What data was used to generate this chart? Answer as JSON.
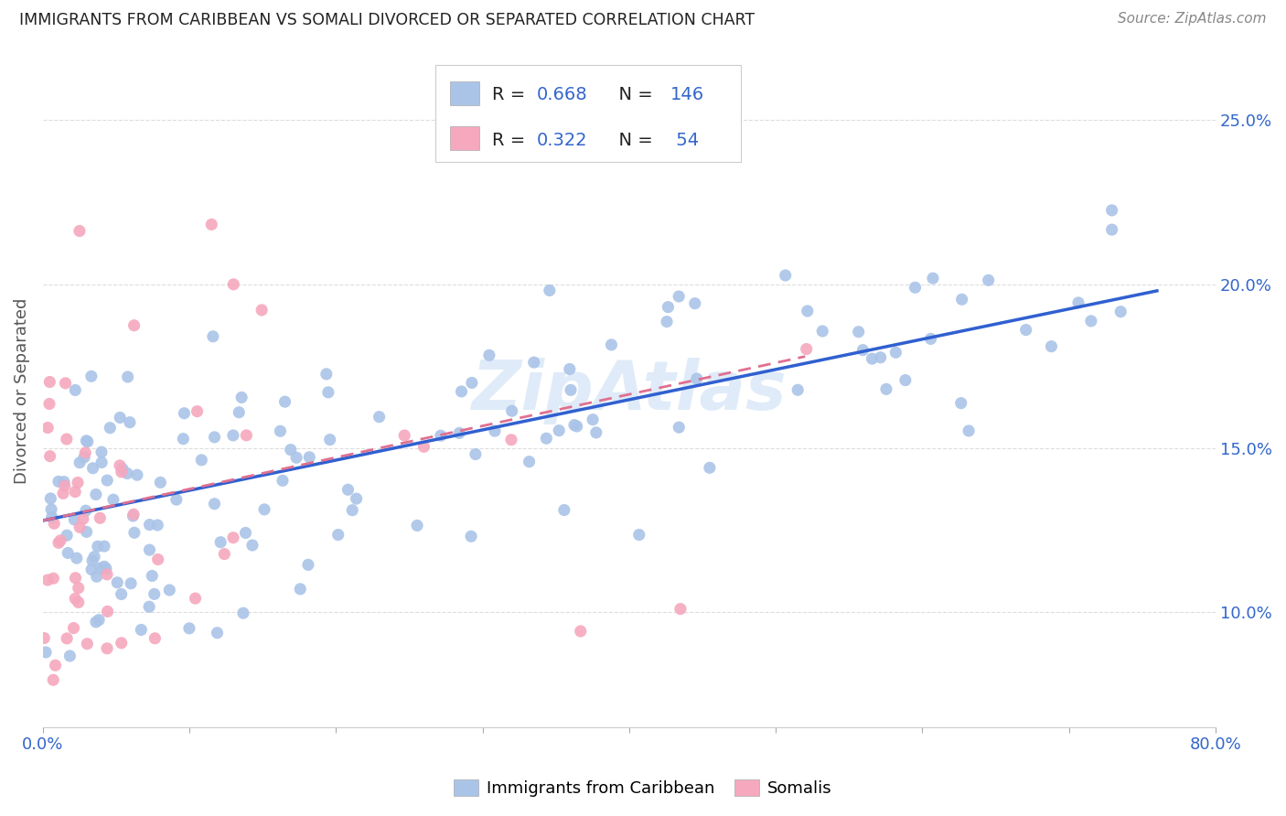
{
  "title": "IMMIGRANTS FROM CARIBBEAN VS SOMALI DIVORCED OR SEPARATED CORRELATION CHART",
  "source": "Source: ZipAtlas.com",
  "ylabel": "Divorced or Separated",
  "yticks": [
    "10.0%",
    "15.0%",
    "20.0%",
    "25.0%"
  ],
  "ytick_values": [
    0.1,
    0.15,
    0.2,
    0.25
  ],
  "xlim": [
    0.0,
    0.8
  ],
  "ylim": [
    0.065,
    0.27
  ],
  "blue_color": "#aac4e8",
  "pink_color": "#f5a8be",
  "blue_line_color": "#3060d0",
  "pink_line_color": "#e07090",
  "blue_R": 0.668,
  "blue_N": 146,
  "pink_R": 0.322,
  "pink_N": 54,
  "legend_label_blue": "Immigrants from Caribbean",
  "legend_label_pink": "Somalis",
  "watermark": "ZipAtlas",
  "grid_color": "#dddddd",
  "title_color": "#222222",
  "axis_label_color": "#3366cc",
  "source_color": "#888888",
  "blue_trend_x_start": 0.0,
  "blue_trend_x_end": 0.76,
  "blue_trend_y_start": 0.128,
  "blue_trend_y_end": 0.198,
  "pink_trend_x_start": 0.0,
  "pink_trend_x_end": 0.52,
  "pink_trend_y_start": 0.128,
  "pink_trend_y_end": 0.178
}
